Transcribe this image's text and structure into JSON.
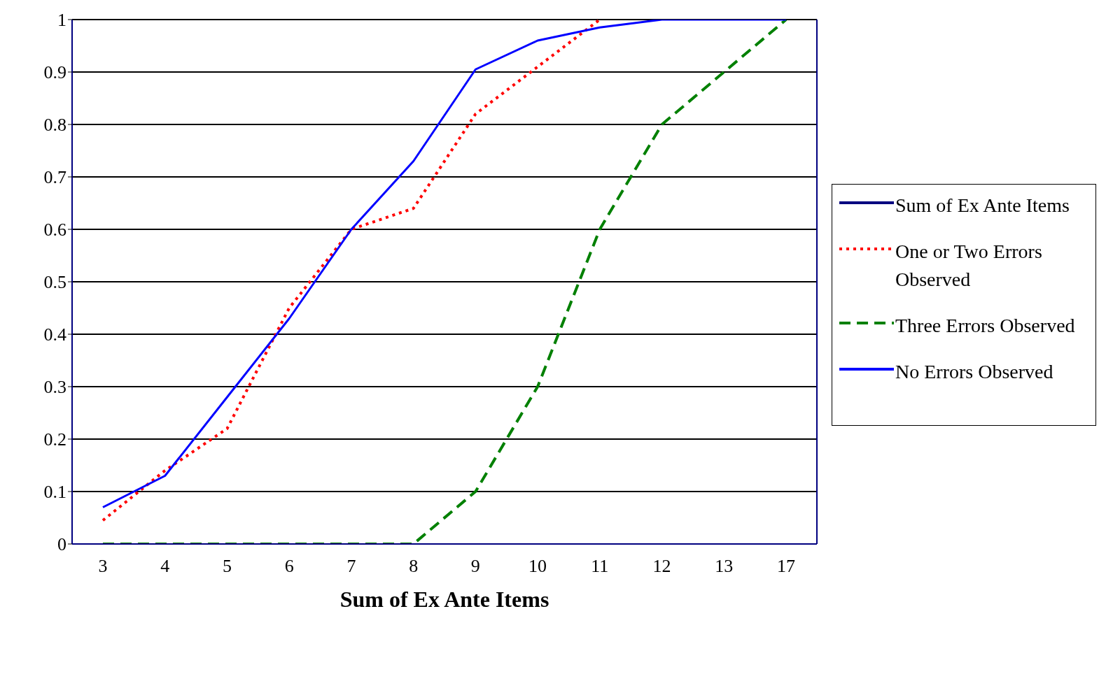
{
  "chart_data": {
    "type": "line",
    "xlabel": "Sum of Ex Ante Items",
    "categories": [
      "3",
      "4",
      "5",
      "6",
      "7",
      "8",
      "9",
      "10",
      "11",
      "12",
      "13",
      "17"
    ],
    "series": [
      {
        "name": "Sum of Ex Ante Items",
        "color": "#000080",
        "line_style": "solid",
        "values": [
          null,
          null,
          null,
          null,
          null,
          null,
          null,
          null,
          null,
          null,
          null,
          null
        ]
      },
      {
        "name": "One or Two Errors Observed",
        "color": "#ff0000",
        "line_style": "dotted",
        "values": [
          0.045,
          0.14,
          0.22,
          0.45,
          0.6,
          0.64,
          0.82,
          0.91,
          1.0,
          null,
          null,
          null
        ]
      },
      {
        "name": "Three Errors Observed",
        "color": "#008000",
        "line_style": "dashed",
        "values": [
          0,
          0,
          0,
          0,
          0,
          0,
          0.1,
          0.3,
          0.6,
          0.8,
          0.9,
          1.0
        ]
      },
      {
        "name": "No Errors Observed",
        "color": "#0000ff",
        "line_style": "solid",
        "values": [
          0.07,
          0.13,
          0.28,
          0.43,
          0.6,
          0.73,
          0.905,
          0.96,
          0.985,
          1.0,
          1.0,
          1.0
        ]
      }
    ],
    "ylim": [
      0,
      1
    ],
    "yticks": [
      0,
      0.1,
      0.2,
      0.3,
      0.4,
      0.5,
      0.6,
      0.7,
      0.8,
      0.9,
      1
    ],
    "grid": "y",
    "legend": "right",
    "marker": "none"
  }
}
